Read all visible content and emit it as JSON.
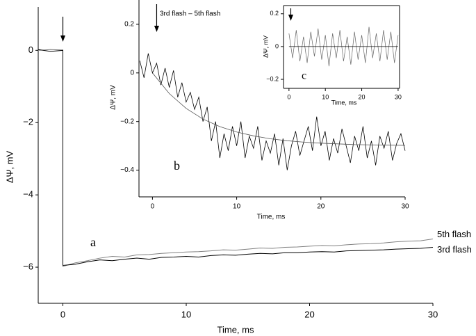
{
  "chart_data": [
    {
      "type": "line",
      "x_label": "Time, ms",
      "y_label": "ΔΨ, mV",
      "x": [
        -2,
        -1,
        0,
        0,
        1,
        2,
        3,
        4,
        5,
        6,
        7,
        8,
        9,
        10,
        11,
        12,
        13,
        14,
        15,
        16,
        17,
        18,
        19,
        20,
        21,
        22,
        23,
        24,
        25,
        26,
        27,
        28,
        29,
        30
      ],
      "series": [
        {
          "name": "5th flash",
          "color": "#808080",
          "values": [
            0.0,
            0.02,
            0.01,
            -5.98,
            -5.88,
            -5.82,
            -5.75,
            -5.7,
            -5.72,
            -5.66,
            -5.65,
            -5.62,
            -5.6,
            -5.58,
            -5.57,
            -5.55,
            -5.52,
            -5.53,
            -5.5,
            -5.47,
            -5.48,
            -5.45,
            -5.44,
            -5.42,
            -5.4,
            -5.41,
            -5.38,
            -5.36,
            -5.35,
            -5.33,
            -5.3,
            -5.28,
            -5.27,
            -5.22
          ]
        },
        {
          "name": "3rd flash",
          "color": "#000000",
          "values": [
            0.02,
            -0.03,
            0.0,
            -5.95,
            -5.92,
            -5.85,
            -5.8,
            -5.82,
            -5.78,
            -5.75,
            -5.78,
            -5.73,
            -5.72,
            -5.7,
            -5.72,
            -5.68,
            -5.66,
            -5.67,
            -5.64,
            -5.62,
            -5.63,
            -5.6,
            -5.6,
            -5.58,
            -5.57,
            -5.58,
            -5.55,
            -5.54,
            -5.53,
            -5.52,
            -5.5,
            -5.49,
            -5.48,
            -5.45
          ]
        }
      ],
      "xlim": [
        -2,
        30
      ],
      "xticks": [
        0,
        10,
        20,
        30
      ],
      "ylim": [
        -7,
        1.2
      ],
      "yticks": [
        0,
        {
          "value": -2,
          "label": "−2"
        },
        {
          "value": -4,
          "label": "−4"
        },
        {
          "value": -6,
          "label": "−6"
        }
      ],
      "annotations": [
        "a"
      ]
    },
    {
      "type": "line",
      "x_label": "Time, ms",
      "y_label": "ΔΨ, mV",
      "x": [
        -1.5,
        -1,
        -0.5,
        0,
        0.5,
        1,
        1.5,
        2,
        2.5,
        3,
        3.5,
        4,
        4.5,
        5,
        5.5,
        6,
        6.5,
        7,
        7.5,
        8,
        8.5,
        9,
        9.5,
        10,
        10.5,
        11,
        11.5,
        12,
        12.5,
        13,
        13.5,
        14,
        14.5,
        15,
        15.5,
        16,
        16.5,
        17,
        17.5,
        18,
        18.5,
        19,
        19.5,
        20,
        20.5,
        21,
        21.5,
        22,
        22.5,
        23,
        23.5,
        24,
        24.5,
        25,
        25.5,
        26,
        26.5,
        27,
        27.5,
        28,
        28.5,
        29,
        29.5,
        30
      ],
      "series": [
        {
          "color": "#000000",
          "values": [
            0.05,
            -0.02,
            0.08,
            0.0,
            0.04,
            -0.05,
            0.02,
            -0.06,
            0.01,
            -0.1,
            -0.04,
            -0.12,
            -0.08,
            -0.15,
            -0.1,
            -0.2,
            -0.14,
            -0.28,
            -0.2,
            -0.35,
            -0.25,
            -0.32,
            -0.22,
            -0.3,
            -0.2,
            -0.35,
            -0.26,
            -0.31,
            -0.22,
            -0.36,
            -0.28,
            -0.33,
            -0.25,
            -0.38,
            -0.27,
            -0.4,
            -0.3,
            -0.24,
            -0.34,
            -0.28,
            -0.22,
            -0.32,
            -0.18,
            -0.3,
            -0.24,
            -0.36,
            -0.27,
            -0.33,
            -0.23,
            -0.3,
            -0.37,
            -0.26,
            -0.32,
            -0.22,
            -0.35,
            -0.28,
            -0.38,
            -0.26,
            -0.31,
            -0.24,
            -0.36,
            -0.29,
            -0.25,
            -0.32
          ]
        },
        {
          "color": "#555555",
          "x": [
            0,
            2,
            4,
            6,
            8,
            10,
            12,
            14,
            16,
            18,
            20,
            22,
            24,
            26,
            28,
            30
          ],
          "values": [
            0,
            -0.085,
            -0.146,
            -0.19,
            -0.221,
            -0.243,
            -0.259,
            -0.271,
            -0.279,
            -0.285,
            -0.289,
            -0.292,
            -0.295,
            -0.296,
            -0.297,
            -0.298
          ]
        }
      ],
      "xlim": [
        -1.6,
        30
      ],
      "xticks": [
        0,
        10,
        20,
        30
      ],
      "ylim": [
        -0.51,
        0.3
      ],
      "yticks": [
        0.2,
        0,
        {
          "value": -0.2,
          "label": "−0.2"
        },
        {
          "value": -0.4,
          "label": "−0.4"
        }
      ],
      "annotations": [
        "3rd flash – 5th flash",
        "b"
      ]
    },
    {
      "type": "line",
      "x_label": "Time, ms",
      "y_label": "ΔΨ, mV",
      "x": [
        0,
        1,
        2,
        3,
        4,
        5,
        6,
        7,
        8,
        9,
        10,
        11,
        12,
        13,
        14,
        15,
        16,
        17,
        18,
        19,
        20,
        21,
        22,
        23,
        24,
        25,
        26,
        27,
        28,
        29,
        30
      ],
      "series": [
        {
          "color": "#666666",
          "values": [
            0.08,
            -0.07,
            0.1,
            -0.09,
            0.06,
            -0.1,
            0.09,
            -0.06,
            0.11,
            -0.08,
            0.07,
            -0.12,
            0.08,
            -0.07,
            0.1,
            -0.09,
            0.06,
            -0.11,
            0.09,
            -0.08,
            0.07,
            -0.1,
            0.12,
            -0.07,
            0.08,
            -0.09,
            0.1,
            -0.08,
            0.09,
            -0.1,
            0.07
          ]
        },
        {
          "color": "#000000",
          "x": [
            0,
            30
          ],
          "values": [
            0,
            0
          ]
        }
      ],
      "xlim": [
        -1.5,
        30.4
      ],
      "xticks": [
        0,
        10,
        20,
        30
      ],
      "ylim": [
        -0.255,
        0.25
      ],
      "yticks": [
        0.2,
        0,
        {
          "value": -0.2,
          "label": "−0.2"
        }
      ],
      "annotations": [
        "c"
      ]
    }
  ]
}
